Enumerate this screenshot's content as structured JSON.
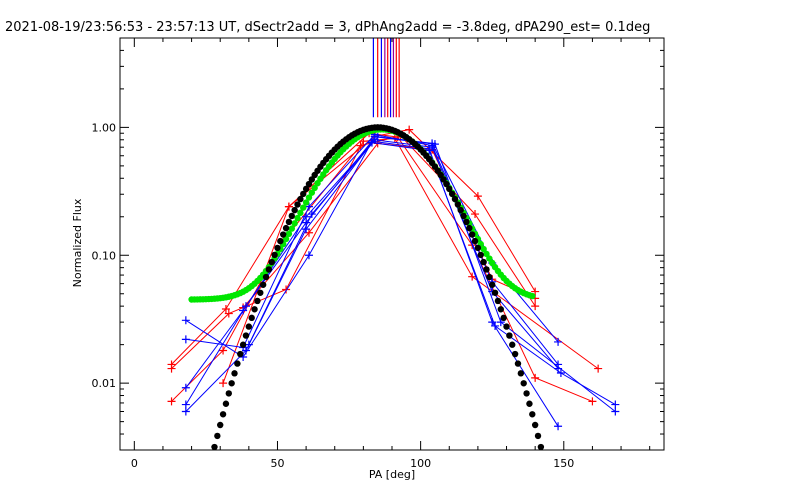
{
  "chart_data": {
    "type": "line",
    "title": "2021-08-19/23:56:53 - 23:57:13 UT, dSectr2add = 3, dPhAng2add = -3.8deg, dPA290_est=  0.1deg",
    "xlabel": "PA [deg]",
    "ylabel": "Normalized Flux",
    "xlim": [
      -5,
      185
    ],
    "ylim": [
      0.003,
      5.0
    ],
    "yscale": "log",
    "xticks": [
      0,
      50,
      100,
      150
    ],
    "xtick_labels": [
      "0",
      "50",
      "100",
      "150"
    ],
    "yticks": [
      0.01,
      0.1,
      1.0
    ],
    "ytick_labels": [
      "0.01",
      "0.10",
      "1.00"
    ],
    "grid": false,
    "colors": {
      "red": "#ff0000",
      "blue": "#0000ff",
      "green": "#00e600",
      "black": "#000000",
      "violet": "#990099"
    },
    "vertical_markers": {
      "x": [
        83.5,
        85.0,
        86.3,
        87.5,
        88.5,
        89.5,
        90.5,
        91.5,
        92.5
      ],
      "colors": [
        "#0000ff",
        "#ff0000",
        "#0000ff",
        "#990099",
        "#ff0000",
        "#0000ff",
        "#990099",
        "#ff0000",
        "#ff0000"
      ],
      "y_bottom": 1.2
    },
    "series": [
      {
        "color": "#ff0000",
        "x": [
          13,
          32,
          54,
          84,
          96,
          120,
          140
        ],
        "y": [
          0.014,
          0.038,
          0.24,
          0.85,
          0.96,
          0.29,
          0.052
        ]
      },
      {
        "color": "#ff0000",
        "x": [
          13,
          31,
          52,
          79,
          93,
          119,
          140
        ],
        "y": [
          0.0072,
          0.018,
          0.13,
          0.72,
          0.86,
          0.21,
          0.04
        ]
      },
      {
        "color": "#ff0000",
        "x": [
          13,
          33,
          53,
          80,
          91,
          118,
          162
        ],
        "y": [
          0.013,
          0.035,
          0.054,
          0.78,
          0.82,
          0.068,
          0.013
        ]
      },
      {
        "color": "#ff0000",
        "x": [
          31,
          54,
          82,
          92,
          118,
          140,
          160
        ],
        "y": [
          0.01,
          0.24,
          0.9,
          0.84,
          0.12,
          0.011,
          0.0072
        ]
      },
      {
        "color": "#ff0000",
        "x": [
          38,
          61,
          85,
          104,
          125,
          140
        ],
        "y": [
          0.039,
          0.15,
          0.75,
          0.67,
          0.065,
          0.046
        ]
      },
      {
        "color": "#0000ff",
        "x": [
          18,
          38,
          61,
          84,
          104,
          125,
          148
        ],
        "y": [
          0.031,
          0.016,
          0.1,
          0.85,
          0.75,
          0.087,
          0.021
        ]
      },
      {
        "color": "#0000ff",
        "x": [
          18,
          38,
          61,
          84,
          104,
          125,
          148
        ],
        "y": [
          0.022,
          0.019,
          0.24,
          0.88,
          0.72,
          0.062,
          0.014
        ]
      },
      {
        "color": "#0000ff",
        "x": [
          18,
          38,
          60,
          84,
          104,
          125,
          148
        ],
        "y": [
          0.0092,
          0.037,
          0.2,
          0.8,
          0.7,
          0.052,
          0.013
        ]
      },
      {
        "color": "#0000ff",
        "x": [
          18,
          39,
          60,
          83,
          103,
          125,
          148
        ],
        "y": [
          0.0068,
          0.04,
          0.18,
          0.78,
          0.68,
          0.03,
          0.0046
        ]
      },
      {
        "color": "#0000ff",
        "x": [
          18,
          39,
          60,
          83,
          103,
          126,
          149,
          168
        ],
        "y": [
          0.006,
          0.018,
          0.16,
          0.76,
          0.66,
          0.028,
          0.012,
          0.0068
        ]
      },
      {
        "color": "#0000ff",
        "x": [
          40,
          62,
          85,
          105,
          128,
          168
        ],
        "y": [
          0.02,
          0.21,
          0.84,
          0.74,
          0.03,
          0.006
        ]
      }
    ],
    "fit_curves": [
      {
        "color": "#00e600",
        "gaussian": {
          "amplitude": 0.92,
          "center": 86.5,
          "sigma": 15.5,
          "offset": 0.045
        },
        "x_range": [
          20,
          139
        ]
      },
      {
        "color": "#000000",
        "gaussian": {
          "amplitude": 1.0,
          "center": 85.0,
          "sigma": 16.8,
          "offset": 0.0
        },
        "x_range": [
          25,
          142
        ]
      }
    ]
  }
}
